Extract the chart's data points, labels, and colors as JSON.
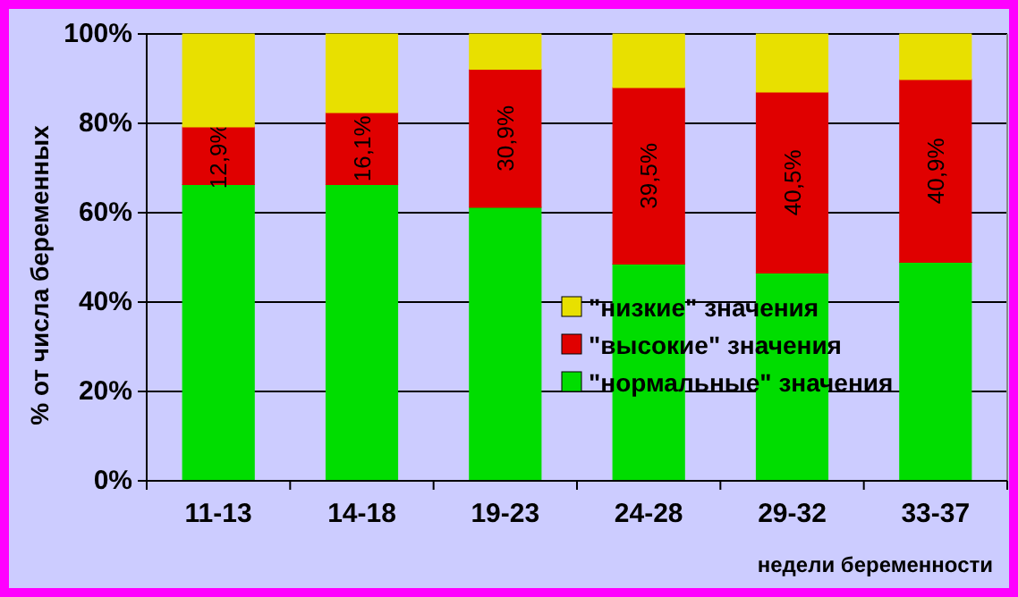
{
  "chart_data": {
    "type": "bar",
    "stacked": true,
    "xlabel": "недели беременности",
    "ylabel": "% от числа беременных",
    "categories": [
      "11-13",
      "14-18",
      "19-23",
      "24-28",
      "29-32",
      "33-37"
    ],
    "series": [
      {
        "name": "\"нормальные\" значения",
        "color": "#00dd00",
        "values": [
          66.3,
          66.3,
          61.2,
          48.5,
          46.5,
          48.9
        ]
      },
      {
        "name": "\"высокие\" значения",
        "color": "#e00000",
        "values": [
          12.9,
          16.1,
          30.9,
          39.5,
          40.5,
          40.9
        ],
        "value_labels": [
          "12,9%",
          "16,1%",
          "30,9%",
          "39,5%",
          "40,5%",
          "40,9%"
        ]
      },
      {
        "name": "\"низкие\" значения",
        "color": "#e8e000",
        "values": [
          20.8,
          17.6,
          7.9,
          12.0,
          13.0,
          10.2
        ]
      }
    ],
    "ylim": [
      0,
      100
    ],
    "yticks": [
      {
        "value": 0,
        "label": "0%"
      },
      {
        "value": 20,
        "label": "20%"
      },
      {
        "value": 40,
        "label": "40%"
      },
      {
        "value": 60,
        "label": "60%"
      },
      {
        "value": 80,
        "label": "80%"
      },
      {
        "value": 100,
        "label": "100%"
      }
    ],
    "grid": "y",
    "legend": "right"
  }
}
